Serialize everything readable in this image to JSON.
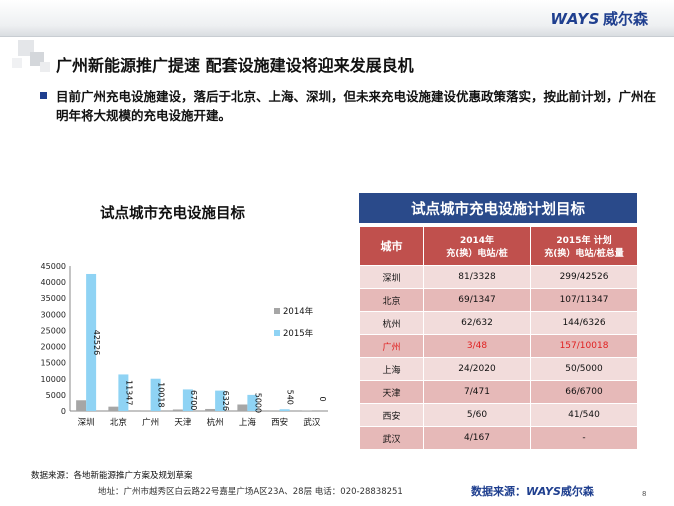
{
  "header": {
    "logo_en": "WAYS",
    "logo_cn": "威尔森"
  },
  "slide": {
    "title": "广州新能源推广提速 配套设施建设将迎来发展良机",
    "bullet": "目前广州充电设施建设，落后于北京、上海、深圳，但未来充电设施建设优惠政策落实，按此前计划，广州在明年将大规模的充电设施开建。"
  },
  "chart_title": "试点城市充电设施目标",
  "chart_data": {
    "type": "bar",
    "categories": [
      "深圳",
      "北京",
      "广州",
      "天津",
      "杭州",
      "上海",
      "西安",
      "武汉"
    ],
    "series": [
      {
        "name": "2014年",
        "values": [
          3328,
          1347,
          48,
          471,
          632,
          2020,
          60,
          167
        ],
        "color": "#a6a6a6"
      },
      {
        "name": "2015年",
        "values": [
          42526,
          11347,
          10018,
          6700,
          6326,
          5000,
          540,
          0
        ],
        "color": "#8fd3f4"
      }
    ],
    "data_labels_2015": [
      "42526",
      "11347",
      "10018",
      "6700",
      "6326",
      "5000",
      "540",
      "0"
    ],
    "ylim": [
      0,
      45000
    ],
    "yticks": [
      0,
      5000,
      10000,
      15000,
      20000,
      25000,
      30000,
      35000,
      40000,
      45000
    ],
    "legend_position": "right"
  },
  "table": {
    "title": "试点城市充电设施计划目标",
    "headers": [
      "城市",
      "2014年\n充(换）电站/桩",
      "2015年 计划\n充(换）电站/桩总量"
    ],
    "rows": [
      {
        "city": "深圳",
        "y2014": "81/3328",
        "y2015": "299/42526"
      },
      {
        "city": "北京",
        "y2014": "69/1347",
        "y2015": "107/11347"
      },
      {
        "city": "杭州",
        "y2014": "62/632",
        "y2015": "144/6326"
      },
      {
        "city": "广州",
        "y2014": "3/48",
        "y2015": "157/10018"
      },
      {
        "city": "上海",
        "y2014": "24/2020",
        "y2015": "50/5000"
      },
      {
        "city": "天津",
        "y2014": "7/471",
        "y2015": "66/6700"
      },
      {
        "city": "西安",
        "y2014": "5/60",
        "y2015": "41/540"
      },
      {
        "city": "武汉",
        "y2014": "4/167",
        "y2015": "-"
      }
    ],
    "highlight_city": "广州",
    "highlight_color": "#e02020"
  },
  "footer": {
    "source_left": "数据来源：各地新能源推广方案及规划草案",
    "address": "地址：广州市越秀区白云路22号嘉星广场A区23A、28层   电话：020-28838251",
    "source_right_prefix": "数据来源：",
    "source_right_en": "WAYS",
    "source_right_cn": "威尔森",
    "page": "8"
  },
  "colors": {
    "brand": "#1f3f8f",
    "table_header": "#2a4a8a",
    "table_head_row": "#c0504d",
    "row_odd": "#f2dcdb",
    "row_even": "#e6b9b8"
  }
}
